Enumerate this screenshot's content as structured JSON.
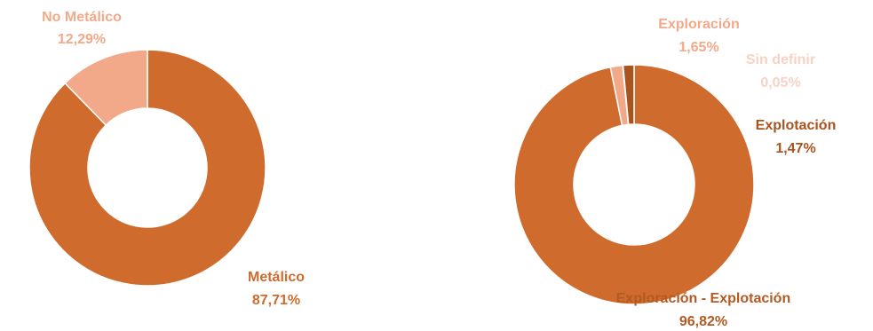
{
  "chart_data": [
    {
      "type": "pie",
      "donut": true,
      "legend": "none",
      "slices": [
        {
          "name": "Metálico",
          "value": 87.71,
          "value_label": "87,71%",
          "color": "#CF6B2C",
          "label_color": "#CF6B2C"
        },
        {
          "name": "No Metálico",
          "value": 12.29,
          "value_label": "12,29%",
          "color": "#F2A98A",
          "label_color": "#F2A98A"
        }
      ]
    },
    {
      "type": "pie",
      "donut": true,
      "legend": "none",
      "slices": [
        {
          "name": "Exploración - Explotación",
          "value": 96.82,
          "value_label": "96,82%",
          "color": "#CF6B2C",
          "label_color": "#B25A22"
        },
        {
          "name": "Exploración",
          "value": 1.65,
          "value_label": "1,65%",
          "color": "#F2A98A",
          "label_color": "#F2A98A"
        },
        {
          "name": "Sin definir",
          "value": 0.05,
          "value_label": "0,05%",
          "color": "#F8D2C4",
          "label_color": "#F8D2C4"
        },
        {
          "name": "Explotación",
          "value": 1.47,
          "value_label": "1,47%",
          "color": "#A9531F",
          "label_color": "#A9531F"
        }
      ]
    }
  ]
}
